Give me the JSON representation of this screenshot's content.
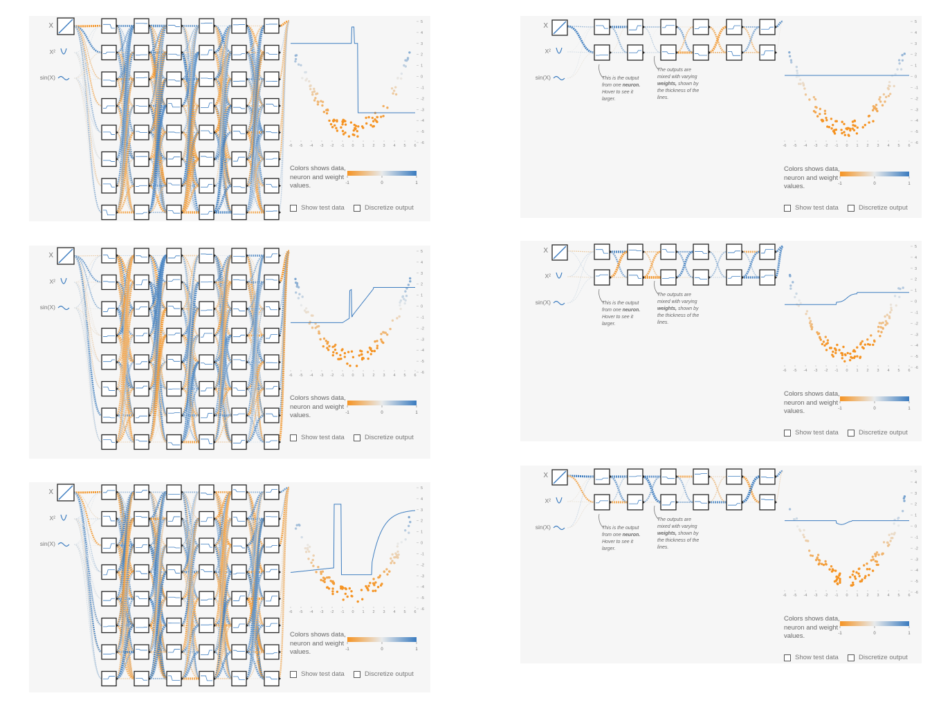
{
  "features": [
    "X",
    "X²",
    "sin(X)"
  ],
  "legend": {
    "text": "Colors shows data, neuron and weight values.",
    "min": "-1",
    "mid": "0",
    "max": "1"
  },
  "checkboxes": {
    "test": "Show test data",
    "discretize": "Discretize output"
  },
  "annotations": {
    "neuron": {
      "pre": "This is the output from one ",
      "bold": "neuron.",
      "post": " Hover to see it larger."
    },
    "weights": {
      "pre": "The outputs are mixed with varying ",
      "bold": "weights,",
      "post": " shown by the thickness of the lines."
    }
  },
  "axis": {
    "x_ticks": [
      "-6",
      "-5",
      "-4",
      "-3",
      "-2",
      "-1",
      "0",
      "1",
      "2",
      "3",
      "4",
      "5",
      "6"
    ],
    "y_ticks": [
      "5",
      "4",
      "3",
      "2",
      "1",
      "0",
      "-1",
      "-2",
      "-3",
      "-4",
      "-5",
      "-6"
    ]
  },
  "colors": {
    "orange": "#f59322",
    "blue": "#3a7bbf",
    "light": "#e8eaeb",
    "panel": "#f6f6f6"
  },
  "panels": [
    {
      "id": "left-1",
      "layers": 6,
      "neurons": 8
    },
    {
      "id": "left-2",
      "layers": 6,
      "neurons": 8
    },
    {
      "id": "left-3",
      "layers": 6,
      "neurons": 8
    },
    {
      "id": "right-1",
      "layers": 6,
      "neurons": 2
    },
    {
      "id": "right-2",
      "layers": 6,
      "neurons": 2
    },
    {
      "id": "right-3",
      "layers": 6,
      "neurons": 2
    }
  ]
}
